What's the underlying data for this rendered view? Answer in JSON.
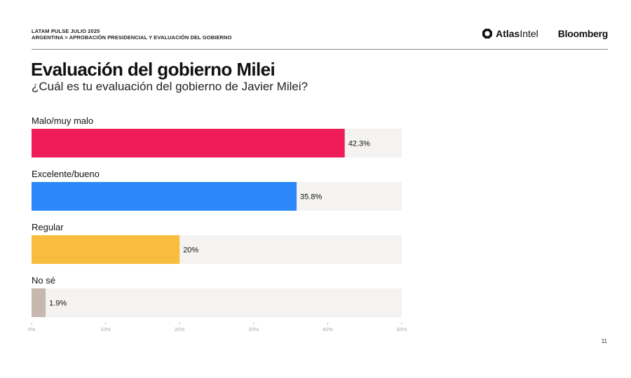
{
  "header": {
    "line1": "LATAM PULSE JULIO 2025",
    "line2": "ARGENTINA > APROBACIÓN PRESIDENCIAL Y EVALUACIÓN DEL GOBIERNO",
    "brand_atlas_bold": "Atlas",
    "brand_atlas_regular": "Intel",
    "brand_bloomberg": "Bloomberg"
  },
  "title": "Evaluación del gobierno Milei",
  "subtitle": "¿Cuál es tu evaluación del gobierno de Javier Milei?",
  "page_number": "11",
  "chart_data": {
    "type": "bar",
    "orientation": "horizontal",
    "categories": [
      "Malo/muy malo",
      "Excelente/bueno",
      "Regular",
      "No sé"
    ],
    "values": [
      42.3,
      35.8,
      20,
      1.9
    ],
    "value_labels": [
      "42.3%",
      "35.8%",
      "20%",
      "1.9%"
    ],
    "colors": [
      "#ee1d5a",
      "#2a88fb",
      "#f8bd3e",
      "#c6b8ae"
    ],
    "track_color": "#f4f3f1",
    "xlim": [
      0,
      50
    ],
    "x_ticks": [
      "0%",
      "10%",
      "20%",
      "30%",
      "40%",
      "50%"
    ],
    "grid": false,
    "legend": "none"
  }
}
